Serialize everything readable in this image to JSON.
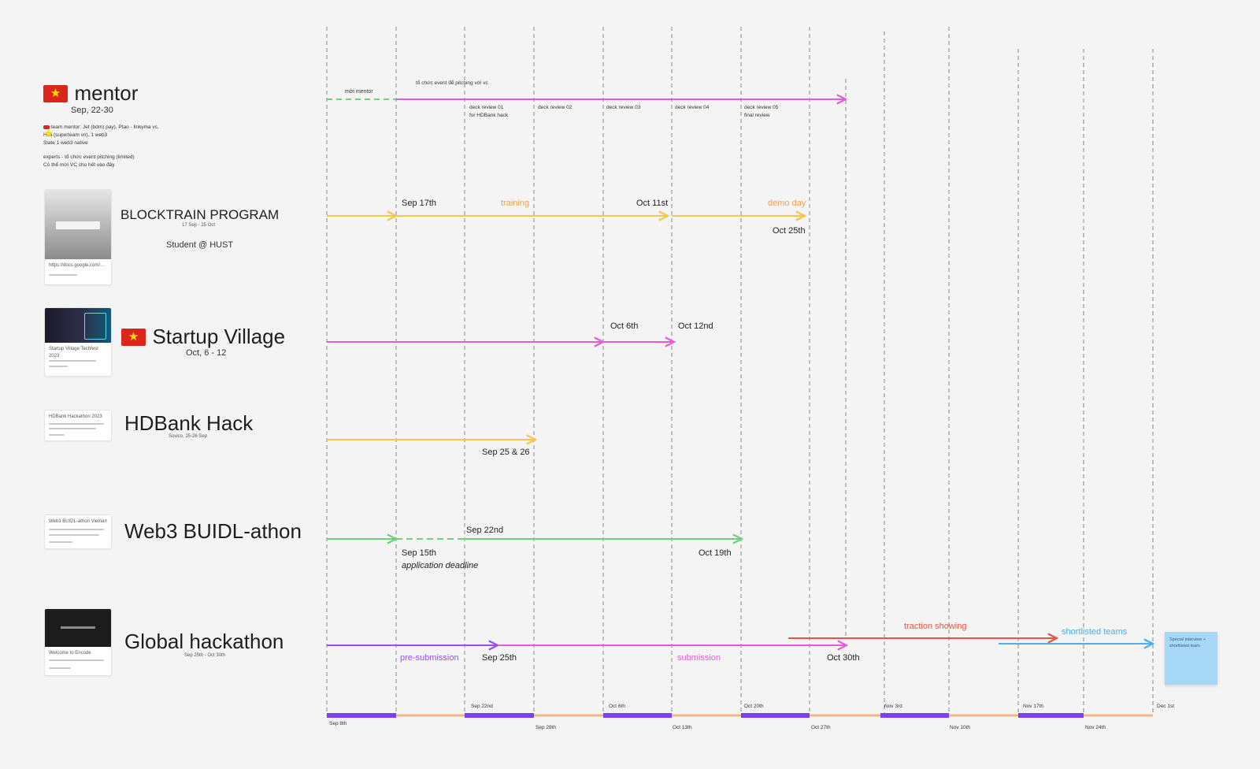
{
  "rows": {
    "mentor": {
      "title": "mentor",
      "dates": "Sep, 22-30",
      "notes": [
        "team mentor: Jet (bdm) pay), Ptao - linkyma vc,",
        "Hila (superteam vn), 1 web3",
        "Slate 1 web3 native",
        "experts - tổ chức event pitching (limited)",
        "Có thể mời VC cho hết vào đây"
      ]
    },
    "blocktrain": {
      "title": "BLOCKTRAIN PROGRAM",
      "dates": "17 Sep - 25 Oct",
      "sub": "Student @ HUST",
      "card_text": "https://docs.google.com/..."
    },
    "startup_village": {
      "title": "Startup Village",
      "dates": "Oct, 6 - 12",
      "card_text": "Startup Village Techfest 2023"
    },
    "hdbank": {
      "title": "HDBank Hack",
      "dates": "Sovico, 25-26 Sep",
      "card_text": "HDBank Hackathon 2023"
    },
    "web3": {
      "title": "Web3 BUIDL-athon",
      "card_text": "Web3 BUIDL-athon Vietnam"
    },
    "global": {
      "title": "Global hackathon",
      "dates": "Sep 25th - Oct 30th",
      "card_text": "Welcome to Encode"
    }
  },
  "timeline_labels": {
    "mentor_left": "mời mentor",
    "mentor_top": "tổ chức event để pitching với vc",
    "deck_reviews": [
      "deck review 01",
      "deck review 02",
      "deck review 03",
      "deck review 04",
      "deck review 05"
    ],
    "deck_sub_1": "for HDBank hack",
    "deck_sub_5": "final review",
    "bt_sep17": "Sep 17th",
    "bt_training": "training",
    "bt_oct11": "Oct 11st",
    "bt_demo": "demo day",
    "bt_oct25": "Oct 25th",
    "sv_oct6": "Oct 6th",
    "sv_oct12": "Oct 12nd",
    "hd_date": "Sep 25 & 26",
    "w3_sep22": "Sep 22nd",
    "w3_sep15": "Sep 15th",
    "w3_deadline": "application deadline",
    "w3_oct19": "Oct 19th",
    "gh_traction": "traction showing",
    "gh_shortlisted": "shortlisted teams",
    "gh_presub": "pre-submission",
    "gh_sep25": "Sep 25th",
    "gh_submission": "submission",
    "gh_oct30": "Oct 30th"
  },
  "sticky_note": "Special interview + shortlisted team",
  "axis": {
    "top_labels": [
      "Sep 22nd",
      "Oct 6th",
      "Oct 20th",
      "Nov 3rd",
      "Nov 17th",
      "Dec 1st"
    ],
    "bottom_labels": [
      "Sep 8th",
      "Sep 29th",
      "Oct 13th",
      "Oct 27th",
      "Nov 10th",
      "Nov 24th"
    ]
  },
  "colors": {
    "pink": "#e85bd6",
    "yellow": "#f4c64a",
    "orange": "#f0a050",
    "green": "#6fd17c",
    "purple": "#9a4cf0",
    "red": "#e8553e",
    "blue": "#4aaef0",
    "axis_purple": "#7a3ff0",
    "axis_orange": "#f3b483"
  }
}
